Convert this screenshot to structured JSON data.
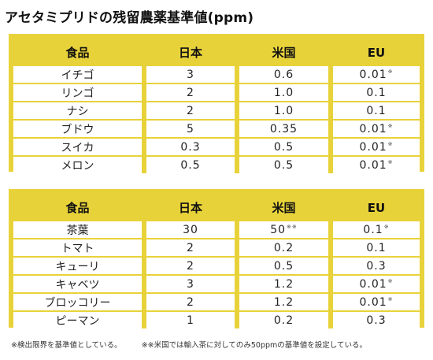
{
  "title": "アセタミプリドの残留農薬基準値(ppm)",
  "table1": {
    "headers": [
      "食品",
      "日本",
      "米国",
      "EU"
    ],
    "rows": [
      {
        "food": "イチゴ",
        "japan": "3",
        "us": "0.6",
        "us_mark": "",
        "eu": "0.01",
        "eu_mark": "※"
      },
      {
        "food": "リンゴ",
        "japan": "2",
        "us": "1.0",
        "us_mark": "",
        "eu": "0.1",
        "eu_mark": ""
      },
      {
        "food": "ナシ",
        "japan": "2",
        "us": "1.0",
        "us_mark": "",
        "eu": "0.1",
        "eu_mark": ""
      },
      {
        "food": "ブドウ",
        "japan": "5",
        "us": "0.35",
        "us_mark": "",
        "eu": "0.01",
        "eu_mark": "※"
      },
      {
        "food": "スイカ",
        "japan": "0.3",
        "us": "0.5",
        "us_mark": "",
        "eu": "0.01",
        "eu_mark": "※"
      },
      {
        "food": "メロン",
        "japan": "0.5",
        "us": "0.5",
        "us_mark": "",
        "eu": "0.01",
        "eu_mark": "※"
      }
    ]
  },
  "table2": {
    "headers": [
      "食品",
      "日本",
      "米国",
      "EU"
    ],
    "rows": [
      {
        "food": "茶葉",
        "japan": "30",
        "us": "50",
        "us_mark": "※※",
        "eu": "0.1",
        "eu_mark": "※"
      },
      {
        "food": "トマト",
        "japan": "2",
        "us": "0.2",
        "us_mark": "",
        "eu": "0.1",
        "eu_mark": ""
      },
      {
        "food": "キューリ",
        "japan": "2",
        "us": "0.5",
        "us_mark": "",
        "eu": "0.3",
        "eu_mark": ""
      },
      {
        "food": "キャベツ",
        "japan": "3",
        "us": "1.2",
        "us_mark": "",
        "eu": "0.01",
        "eu_mark": "※"
      },
      {
        "food": "ブロッコリー",
        "japan": "2",
        "us": "1.2",
        "us_mark": "",
        "eu": "0.01",
        "eu_mark": "※"
      },
      {
        "food": "ピーマン",
        "japan": "1",
        "us": "0.2",
        "us_mark": "",
        "eu": "0.3",
        "eu_mark": ""
      }
    ]
  },
  "footnotes": {
    "note1": "※検出限界を基準値としている。",
    "note2": "※※米国では輸入茶に対してのみ50ppmの基準値を設定している。"
  },
  "colors": {
    "accent": "#e8d23a",
    "cell_background": "#ffffff"
  }
}
